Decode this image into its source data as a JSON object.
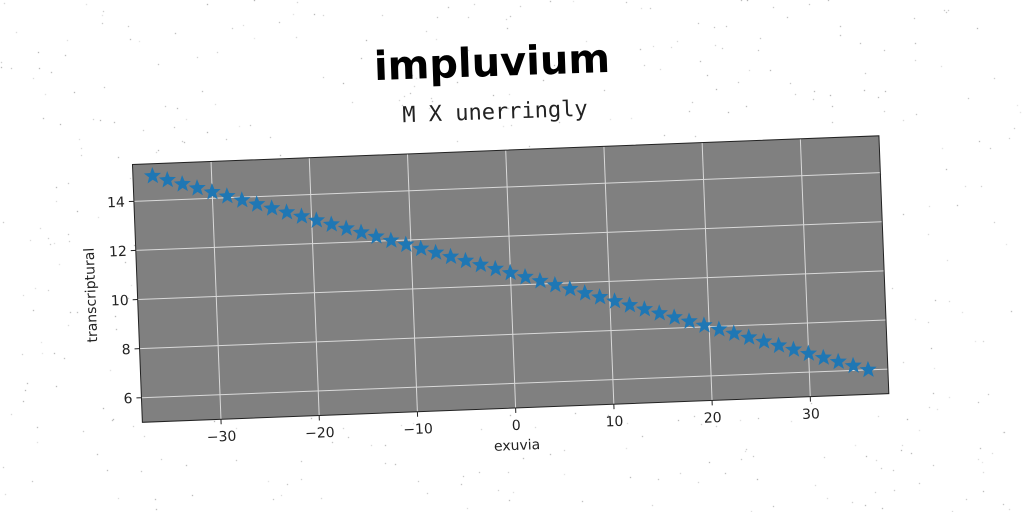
{
  "chart_data": {
    "type": "scatter",
    "title": "impluvium",
    "subtitle": "M X unerringly",
    "xlabel": "exuvia",
    "ylabel": "transcriptural",
    "xlim": [
      -38,
      38
    ],
    "ylim": [
      5,
      15.5
    ],
    "xticks": [
      -30,
      -20,
      -10,
      0,
      10,
      20,
      30
    ],
    "xtick_labels": [
      "−30",
      "−20",
      "−10",
      "0",
      "10",
      "20",
      "30"
    ],
    "yticks": [
      6,
      8,
      10,
      12,
      14
    ],
    "ytick_labels": [
      "6",
      "8",
      "10",
      "12",
      "14"
    ],
    "grid": true,
    "marker": "star",
    "series": [
      {
        "color": "#1f77b4",
        "x_start": -36,
        "x_end": 36,
        "n_points": 49,
        "y_start": 15.0,
        "y_end": 6.0
      }
    ],
    "colors": {
      "plot_background": "#808080",
      "grid": "#d9d9d9",
      "marker": "#1f77b4"
    }
  }
}
